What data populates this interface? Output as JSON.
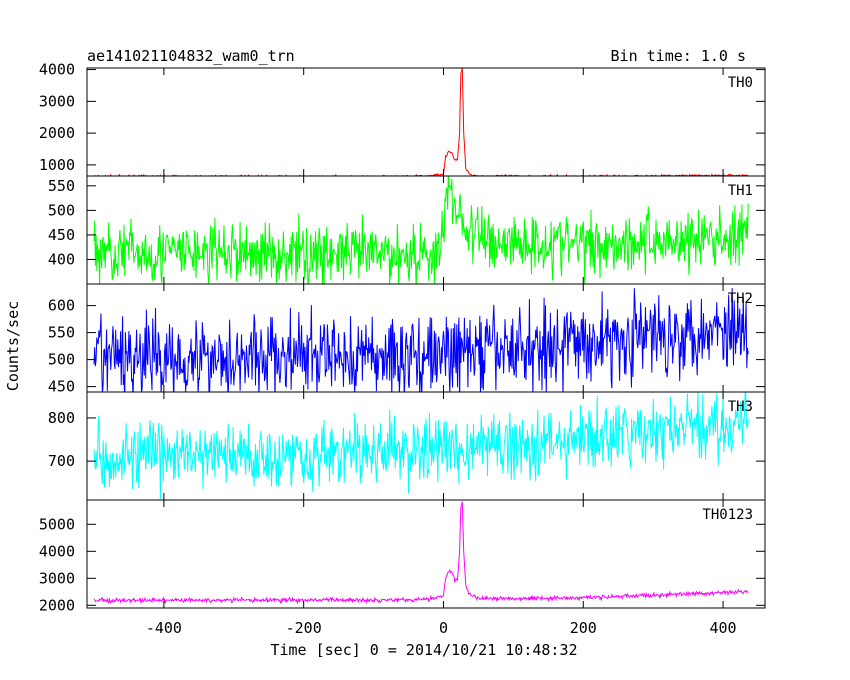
{
  "chart_data": {
    "type": "line",
    "title": "ae141021104832_wam0_trn",
    "subtitle": "Bin time: 1.0 s",
    "xlabel": "Time [sec] 0 = 2014/10/21 10:48:32",
    "ylabel": "Counts/sec",
    "xlim": [
      -510,
      460
    ],
    "x_range": [
      -500,
      436
    ],
    "x_ticks": [
      -400,
      -200,
      0,
      200,
      400
    ],
    "panels": [
      {
        "name": "TH0",
        "color": "#ff0000",
        "ylim": [
          650,
          4050
        ],
        "y_ticks": [
          1000,
          2000,
          3000,
          4000
        ],
        "trend": [
          [
            -500,
            640
          ],
          [
            -100,
            630
          ],
          [
            -20,
            650
          ],
          [
            0,
            720
          ],
          [
            3,
            1250
          ],
          [
            8,
            1450
          ],
          [
            12,
            1380
          ],
          [
            16,
            1150
          ],
          [
            20,
            1150
          ],
          [
            23,
            2000
          ],
          [
            25,
            3900
          ],
          [
            27,
            4050
          ],
          [
            29,
            2000
          ],
          [
            32,
            900
          ],
          [
            38,
            700
          ],
          [
            50,
            650
          ],
          [
            200,
            640
          ],
          [
            436,
            670
          ]
        ],
        "noise": 25
      },
      {
        "name": "TH1",
        "color": "#00ff00",
        "ylim": [
          350,
          570
        ],
        "y_ticks": [
          400,
          450,
          500,
          550
        ],
        "trend": [
          [
            -500,
            415
          ],
          [
            -100,
            410
          ],
          [
            -5,
            412
          ],
          [
            0,
            455
          ],
          [
            5,
            550
          ],
          [
            10,
            540
          ],
          [
            20,
            500
          ],
          [
            35,
            455
          ],
          [
            80,
            435
          ],
          [
            200,
            432
          ],
          [
            436,
            445
          ]
        ],
        "noise": 45
      },
      {
        "name": "TH2",
        "color": "#0000ff",
        "ylim": [
          440,
          640
        ],
        "y_ticks": [
          450,
          500,
          550,
          600
        ],
        "trend": [
          [
            -500,
            505
          ],
          [
            -200,
            505
          ],
          [
            0,
            508
          ],
          [
            100,
            520
          ],
          [
            300,
            545
          ],
          [
            436,
            565
          ]
        ],
        "noise": 55
      },
      {
        "name": "TH3",
        "color": "#00ffff",
        "ylim": [
          610,
          860
        ],
        "y_ticks": [
          700,
          800
        ],
        "trend": [
          [
            -500,
            712
          ],
          [
            -200,
            715
          ],
          [
            0,
            728
          ],
          [
            200,
            750
          ],
          [
            436,
            790
          ]
        ],
        "noise": 55
      },
      {
        "name": "TH0123",
        "color": "#ff00ff",
        "ylim": [
          1900,
          5900
        ],
        "y_ticks": [
          2000,
          3000,
          4000,
          5000
        ],
        "trend": [
          [
            -500,
            2180
          ],
          [
            -100,
            2200
          ],
          [
            -20,
            2220
          ],
          [
            0,
            2350
          ],
          [
            3,
            3000
          ],
          [
            8,
            3300
          ],
          [
            12,
            3200
          ],
          [
            16,
            2950
          ],
          [
            20,
            2950
          ],
          [
            23,
            4000
          ],
          [
            25,
            5600
          ],
          [
            27,
            5800
          ],
          [
            29,
            4000
          ],
          [
            32,
            2700
          ],
          [
            38,
            2400
          ],
          [
            50,
            2250
          ],
          [
            200,
            2280
          ],
          [
            436,
            2500
          ]
        ],
        "noise": 55
      }
    ],
    "grid": false,
    "legend": "none"
  }
}
